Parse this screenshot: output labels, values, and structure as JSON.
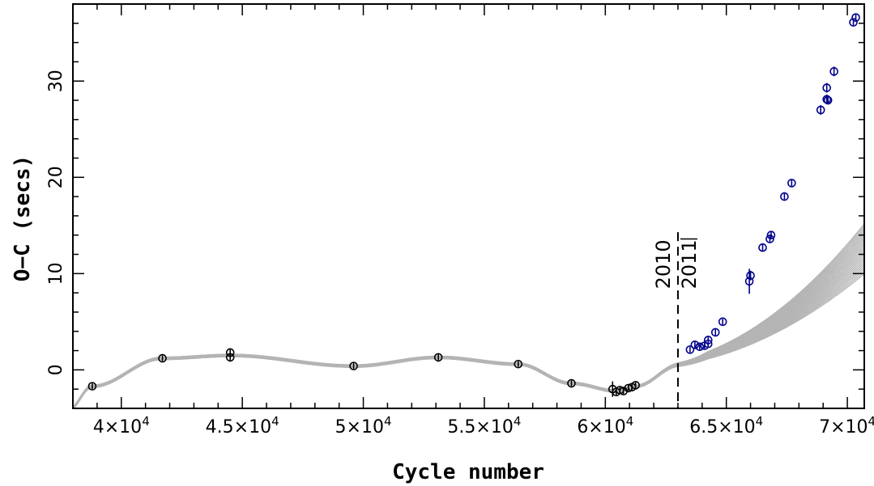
{
  "chart_data": {
    "type": "scatter",
    "title": "",
    "xlabel": "Cycle number",
    "ylabel": "O−C (secs)",
    "xlim": [
      38000,
      70700
    ],
    "ylim": [
      -4,
      38
    ],
    "grid": false,
    "x_ticks": [
      {
        "value": 40000,
        "mantissa": "4",
        "exp": "4"
      },
      {
        "value": 45000,
        "mantissa": "4.5",
        "exp": "4"
      },
      {
        "value": 50000,
        "mantissa": "5",
        "exp": "4"
      },
      {
        "value": 55000,
        "mantissa": "5.5",
        "exp": "4"
      },
      {
        "value": 60000,
        "mantissa": "6",
        "exp": "4"
      },
      {
        "value": 65000,
        "mantissa": "6.5",
        "exp": "4"
      },
      {
        "value": 70000,
        "mantissa": "7",
        "exp": "4"
      }
    ],
    "y_ticks": [
      0,
      10,
      20,
      30
    ],
    "annotations": {
      "divider_x": 63000,
      "left_year": "2010",
      "right_year": "2011"
    },
    "colors": {
      "old_points": "#000000",
      "new_points": "#00008b",
      "fits": "#b4b4b4",
      "divider": "#000000"
    },
    "series": [
      {
        "points": [
          {
            "x": 38800,
            "y": -1.7,
            "err": 0.3
          },
          {
            "x": 41700,
            "y": 1.2,
            "err": 0.3
          },
          {
            "x": 44500,
            "y": 1.8,
            "err": 0.4
          },
          {
            "x": 44500,
            "y": 1.3,
            "err": 0.3
          },
          {
            "x": 49600,
            "y": 0.4,
            "err": 0.4
          },
          {
            "x": 53100,
            "y": 1.3,
            "err": 0.3
          },
          {
            "x": 56400,
            "y": 0.6,
            "err": 0.3
          },
          {
            "x": 58600,
            "y": -1.4,
            "err": 0.3
          },
          {
            "x": 60300,
            "y": -2.0,
            "err": 0.8
          },
          {
            "x": 60450,
            "y": -2.3,
            "err": 0.3
          },
          {
            "x": 60600,
            "y": -2.1,
            "err": 0.3
          },
          {
            "x": 60750,
            "y": -2.2,
            "err": 0.3
          },
          {
            "x": 60950,
            "y": -1.9,
            "err": 0.3
          },
          {
            "x": 61100,
            "y": -1.8,
            "err": 0.3
          },
          {
            "x": 61250,
            "y": -1.6,
            "err": 0.3
          }
        ]
      },
      {
        "points": [
          {
            "x": 63500,
            "y": 2.1,
            "err": 0.3
          },
          {
            "x": 63700,
            "y": 2.6,
            "err": 0.4
          },
          {
            "x": 63900,
            "y": 2.4,
            "err": 0.3
          },
          {
            "x": 64100,
            "y": 2.5,
            "err": 0.3
          },
          {
            "x": 64250,
            "y": 3.1,
            "err": 0.4
          },
          {
            "x": 64250,
            "y": 2.7,
            "err": 0.3
          },
          {
            "x": 64550,
            "y": 3.9,
            "err": 0.3
          },
          {
            "x": 64850,
            "y": 5.0,
            "err": 0.3
          },
          {
            "x": 66000,
            "y": 9.8,
            "err": 0.5
          },
          {
            "x": 65950,
            "y": 9.2,
            "err": 1.3
          },
          {
            "x": 66500,
            "y": 12.7,
            "err": 0.4
          },
          {
            "x": 66800,
            "y": 13.6,
            "err": 0.4
          },
          {
            "x": 66850,
            "y": 14.0,
            "err": 0.4
          },
          {
            "x": 67400,
            "y": 18.0,
            "err": 0.4
          },
          {
            "x": 67700,
            "y": 19.4,
            "err": 0.4
          },
          {
            "x": 68900,
            "y": 27.0,
            "err": 0.5
          },
          {
            "x": 69150,
            "y": 28.1,
            "err": 0.5
          },
          {
            "x": 69200,
            "y": 28.0,
            "err": 0.4
          },
          {
            "x": 69150,
            "y": 29.3,
            "err": 0.5
          },
          {
            "x": 69450,
            "y": 31.0,
            "err": 0.5
          },
          {
            "x": 70250,
            "y": 36.1,
            "err": 0.4
          },
          {
            "x": 70350,
            "y": 36.6,
            "err": 0.4
          }
        ]
      }
    ]
  }
}
